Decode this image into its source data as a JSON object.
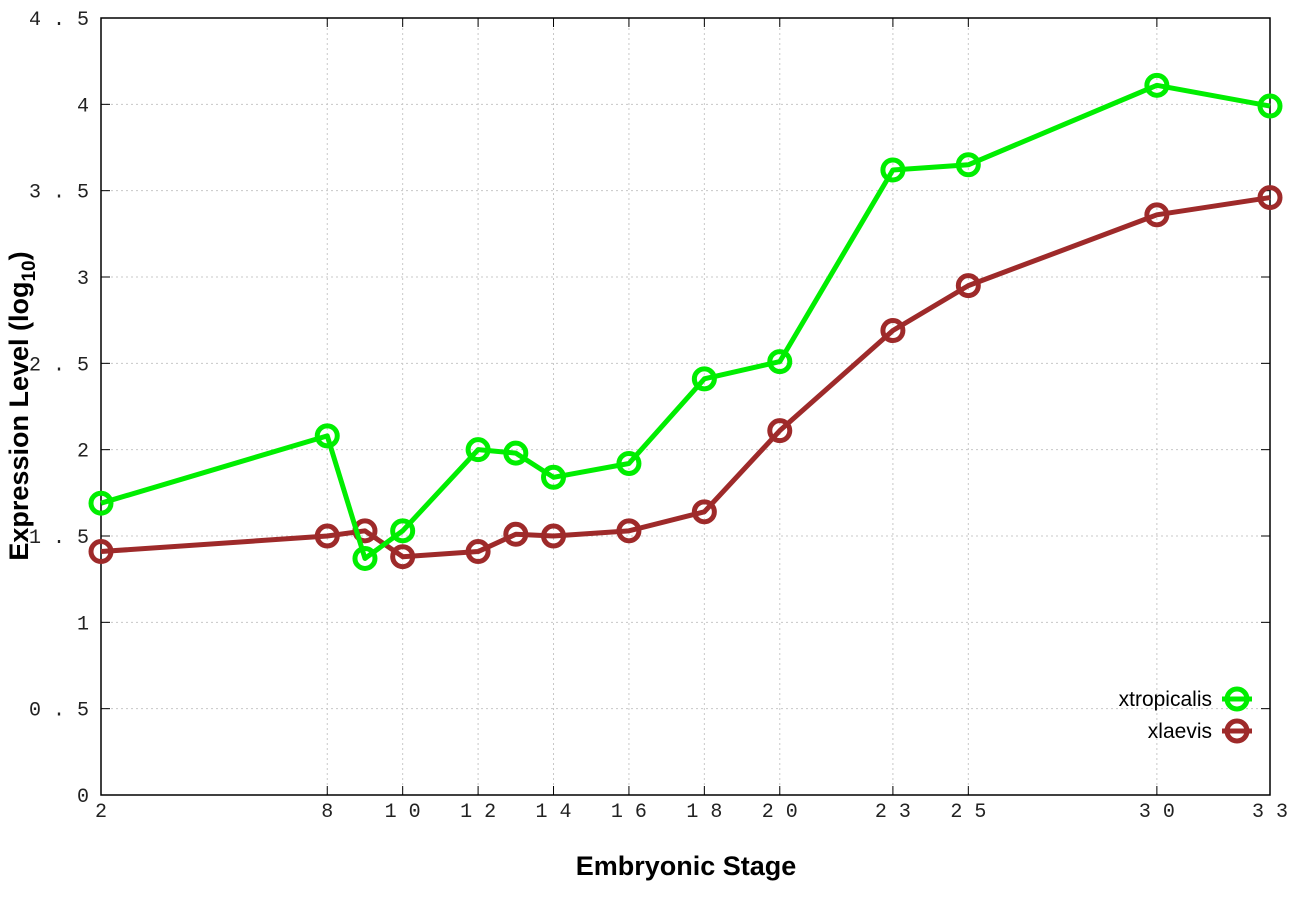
{
  "chart_data": {
    "type": "line",
    "title": "",
    "xlabel": "Embryonic Stage",
    "ylabel": "Expression Level (log10)",
    "xlim": [
      2,
      33
    ],
    "ylim": [
      0,
      4.5
    ],
    "grid": true,
    "legend_position": "bottom-right",
    "x_ticks": [
      2,
      8,
      10,
      12,
      14,
      16,
      18,
      20,
      23,
      25,
      30,
      33
    ],
    "y_ticks": [
      "0",
      "0.5",
      "1",
      "1.5",
      "2",
      "2.5",
      "3",
      "3.5",
      "4",
      "4.5"
    ],
    "x": [
      2,
      8,
      9,
      10,
      12,
      13,
      14,
      16,
      18,
      20,
      23,
      25,
      30,
      33
    ],
    "series": [
      {
        "name": "xtropicalis",
        "color": "#00ee00",
        "values": [
          1.69,
          2.08,
          1.37,
          1.53,
          2.0,
          1.98,
          1.84,
          1.92,
          2.41,
          2.51,
          3.62,
          3.65,
          4.11,
          3.99
        ]
      },
      {
        "name": "xlaevis",
        "color": "#9e2a2a",
        "values": [
          1.41,
          1.5,
          1.53,
          1.38,
          1.41,
          1.51,
          1.5,
          1.53,
          1.64,
          2.11,
          2.69,
          2.95,
          3.36,
          3.46
        ]
      }
    ]
  }
}
